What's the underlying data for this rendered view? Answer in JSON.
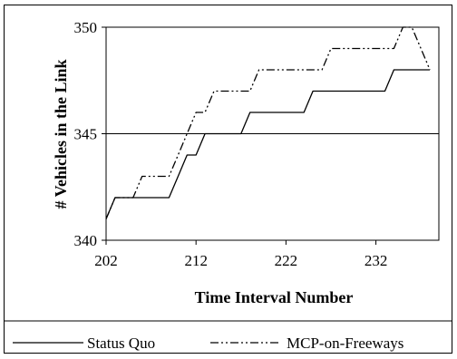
{
  "chart_data": {
    "type": "line",
    "title": "",
    "xlabel": "Time Interval Number",
    "ylabel": "# Vehicles in the Link",
    "xlim": [
      202,
      239
    ],
    "ylim": [
      340,
      350
    ],
    "x_ticks": [
      202,
      212,
      222,
      232
    ],
    "y_ticks": [
      340,
      345,
      350
    ],
    "grid": "horizontal gridline at 345",
    "legend_position": "bottom",
    "x": [
      202,
      203,
      204,
      205,
      206,
      207,
      208,
      209,
      210,
      211,
      212,
      213,
      214,
      215,
      216,
      217,
      218,
      219,
      220,
      221,
      222,
      223,
      224,
      225,
      226,
      227,
      228,
      229,
      230,
      231,
      232,
      233,
      234,
      235,
      236,
      237,
      238
    ],
    "series": [
      {
        "name": "Status Quo",
        "style": "solid",
        "values": [
          341,
          342,
          342,
          342,
          342,
          342,
          342,
          342,
          343,
          344,
          344,
          345,
          345,
          345,
          345,
          345,
          346,
          346,
          346,
          346,
          346,
          346,
          346,
          347,
          347,
          347,
          347,
          347,
          347,
          347,
          347,
          347,
          348,
          348,
          348,
          348,
          348
        ]
      },
      {
        "name": "MCP-on-Freeways",
        "style": "dash-dot-dot",
        "values": [
          341,
          342,
          342,
          342,
          343,
          343,
          343,
          343,
          344,
          345,
          346,
          346,
          347,
          347,
          347,
          347,
          347,
          348,
          348,
          348,
          348,
          348,
          348,
          348,
          348,
          349,
          349,
          349,
          349,
          349,
          349,
          349,
          349,
          350,
          350,
          349,
          348
        ]
      }
    ]
  },
  "legend": {
    "series1_label": "Status Quo",
    "series2_label": "MCP-on-Freeways"
  }
}
